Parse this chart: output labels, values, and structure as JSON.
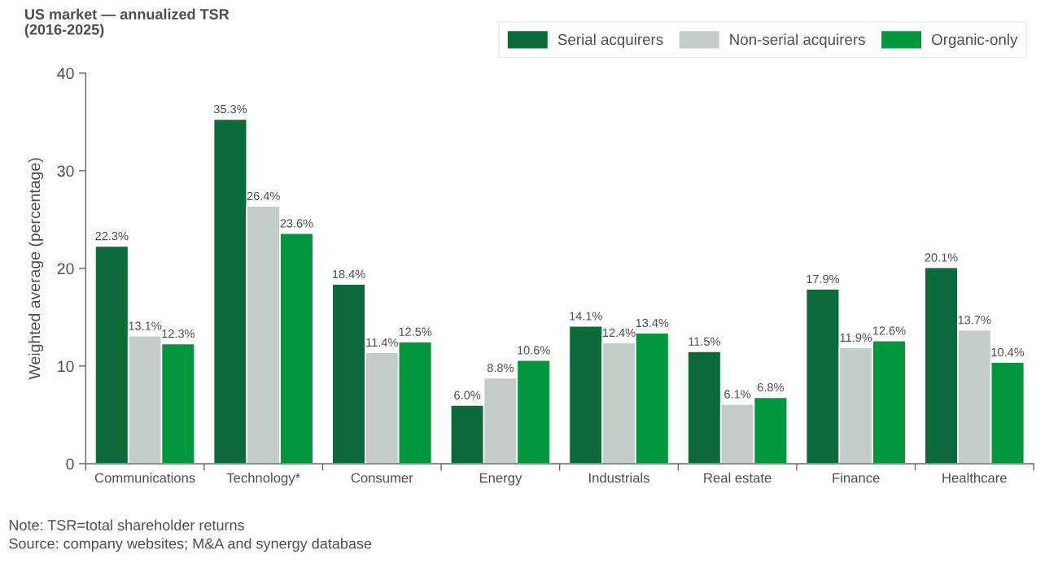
{
  "chart_data": {
    "type": "bar",
    "title": "US market — annualized TSR\n(2016-2025)",
    "ylabel": "Weighted average (percentage)",
    "categories": [
      "Communications",
      "Technology*",
      "Consumer",
      "Energy",
      "Industrials",
      "Real estate",
      "Finance",
      "Healthcare"
    ],
    "series": [
      {
        "name": "Serial acquirers",
        "color": "#0b6b3a",
        "values": [
          22.3,
          35.3,
          18.4,
          6.0,
          14.1,
          11.5,
          17.9,
          20.1
        ],
        "value_labels": [
          "22.3%",
          "35.3%",
          "18.4%",
          "6.0%",
          "14.1%",
          "11.5%",
          "17.9%",
          "20.1%"
        ]
      },
      {
        "name": "Non-serial acquirers",
        "color": "#c5cdcb",
        "values": [
          13.1,
          26.4,
          11.4,
          8.8,
          12.4,
          6.1,
          11.9,
          13.7
        ],
        "value_labels": [
          "13.1%",
          "26.4%",
          "11.4%",
          "8.8%",
          "12.4%",
          "6.1%",
          "11.9%",
          "13.7%"
        ]
      },
      {
        "name": "Organic-only",
        "color": "#00973d",
        "values": [
          12.3,
          23.6,
          12.5,
          10.6,
          13.4,
          6.8,
          12.6,
          10.4
        ],
        "value_labels": [
          "12.3%",
          "23.6%",
          "12.5%",
          "10.6%",
          "13.4%",
          "6.8%",
          "12.6%",
          "10.4%"
        ]
      }
    ],
    "ylim": [
      0,
      40
    ],
    "yticks": [
      0,
      10,
      20,
      30,
      40
    ],
    "grid": false,
    "legend": "top right",
    "annotations": [
      "Note: TSR=total shareholder returns",
      "Source: company websites; M&A and synergy database"
    ]
  }
}
